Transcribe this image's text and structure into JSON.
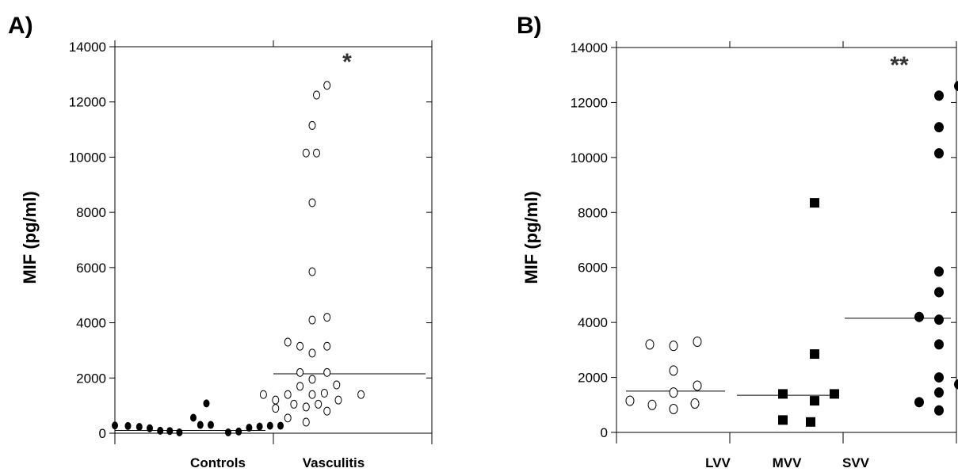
{
  "chart_data": [
    {
      "panel_label": "A)",
      "type": "scatter",
      "ylabel": "MIF (pg/ml)",
      "ylim": [
        0,
        14000
      ],
      "yticks": [
        "0",
        "2000",
        "4000",
        "6000",
        "8000",
        "10000",
        "12000",
        "14000"
      ],
      "categories": [
        "Controls",
        "Vasculitis"
      ],
      "annotation": "*",
      "series": [
        {
          "category": "Controls",
          "marker": "filled-circle",
          "median": 100,
          "points": [
            {
              "x": -0.9,
              "y": 280
            },
            {
              "x": -0.75,
              "y": 260
            },
            {
              "x": -0.62,
              "y": 230
            },
            {
              "x": -0.5,
              "y": 180
            },
            {
              "x": -0.38,
              "y": 90
            },
            {
              "x": -0.27,
              "y": 80
            },
            {
              "x": -0.16,
              "y": 30
            },
            {
              "x": 0.0,
              "y": 560
            },
            {
              "x": 0.08,
              "y": 300
            },
            {
              "x": 0.2,
              "y": 300
            },
            {
              "x": 0.15,
              "y": 1080
            },
            {
              "x": 0.4,
              "y": 30
            },
            {
              "x": 0.52,
              "y": 60
            },
            {
              "x": 0.64,
              "y": 200
            },
            {
              "x": 0.76,
              "y": 240
            },
            {
              "x": 0.88,
              "y": 270
            },
            {
              "x": 1.0,
              "y": 270
            }
          ]
        },
        {
          "category": "Vasculitis",
          "marker": "open-circle",
          "median": 2150,
          "points": [
            {
              "x": 0.17,
              "y": 12600
            },
            {
              "x": 0.05,
              "y": 12250
            },
            {
              "x": 0.0,
              "y": 11150
            },
            {
              "x": -0.07,
              "y": 10150
            },
            {
              "x": 0.05,
              "y": 10150
            },
            {
              "x": 0.0,
              "y": 8350
            },
            {
              "x": 0.0,
              "y": 5850
            },
            {
              "x": 0.17,
              "y": 4200
            },
            {
              "x": 0.0,
              "y": 4100
            },
            {
              "x": -0.28,
              "y": 3300
            },
            {
              "x": -0.14,
              "y": 3150
            },
            {
              "x": 0.0,
              "y": 2900
            },
            {
              "x": 0.17,
              "y": 3150
            },
            {
              "x": -0.14,
              "y": 2200
            },
            {
              "x": 0.0,
              "y": 1950
            },
            {
              "x": 0.17,
              "y": 2200
            },
            {
              "x": -0.14,
              "y": 1700
            },
            {
              "x": 0.28,
              "y": 1750
            },
            {
              "x": -0.56,
              "y": 1400
            },
            {
              "x": -0.42,
              "y": 1200
            },
            {
              "x": -0.28,
              "y": 1400
            },
            {
              "x": 0.0,
              "y": 1400
            },
            {
              "x": 0.14,
              "y": 1450
            },
            {
              "x": 0.3,
              "y": 1200
            },
            {
              "x": 0.56,
              "y": 1400
            },
            {
              "x": -0.42,
              "y": 900
            },
            {
              "x": -0.21,
              "y": 1050
            },
            {
              "x": -0.07,
              "y": 950
            },
            {
              "x": 0.07,
              "y": 1050
            },
            {
              "x": 0.17,
              "y": 800
            },
            {
              "x": -0.28,
              "y": 550
            },
            {
              "x": -0.07,
              "y": 400
            }
          ]
        }
      ]
    },
    {
      "panel_label": "B)",
      "type": "scatter",
      "ylabel": "MIF (pg/ml)",
      "ylim": [
        0,
        14000
      ],
      "yticks": [
        "0",
        "2000",
        "4000",
        "6000",
        "8000",
        "10000",
        "12000",
        "14000"
      ],
      "categories": [
        "LVV",
        "MVV",
        "SVV"
      ],
      "annotation": "**",
      "series": [
        {
          "category": "LVV",
          "marker": "open-circle",
          "median": 1500,
          "points": [
            {
              "x": -0.3,
              "y": 3200
            },
            {
              "x": 0.0,
              "y": 3150
            },
            {
              "x": 0.3,
              "y": 3300
            },
            {
              "x": 0.0,
              "y": 2250
            },
            {
              "x": 0.3,
              "y": 1700
            },
            {
              "x": 0.0,
              "y": 1450
            },
            {
              "x": -0.55,
              "y": 1150
            },
            {
              "x": -0.27,
              "y": 1000
            },
            {
              "x": 0.27,
              "y": 1050
            },
            {
              "x": 0.0,
              "y": 850
            }
          ]
        },
        {
          "category": "MVV",
          "marker": "filled-square",
          "median": 1350,
          "points": [
            {
              "x": 0.35,
              "y": 8350
            },
            {
              "x": 0.35,
              "y": 2850
            },
            {
              "x": -0.05,
              "y": 1400
            },
            {
              "x": 0.6,
              "y": 1400
            },
            {
              "x": 0.35,
              "y": 1150
            },
            {
              "x": -0.05,
              "y": 450
            },
            {
              "x": 0.3,
              "y": 380
            }
          ]
        },
        {
          "category": "SVV",
          "marker": "filled-circle",
          "median": 4150,
          "points": [
            {
              "x": 0.75,
              "y": 12600
            },
            {
              "x": 0.5,
              "y": 12250
            },
            {
              "x": 0.5,
              "y": 11100
            },
            {
              "x": 0.5,
              "y": 10150
            },
            {
              "x": 0.5,
              "y": 5850
            },
            {
              "x": 0.5,
              "y": 5100
            },
            {
              "x": 0.25,
              "y": 4200
            },
            {
              "x": 0.5,
              "y": 4100
            },
            {
              "x": 0.5,
              "y": 3200
            },
            {
              "x": 0.5,
              "y": 2000
            },
            {
              "x": 0.75,
              "y": 1750
            },
            {
              "x": 0.5,
              "y": 1450
            },
            {
              "x": 0.25,
              "y": 1100
            },
            {
              "x": 0.5,
              "y": 800
            }
          ]
        }
      ]
    }
  ]
}
